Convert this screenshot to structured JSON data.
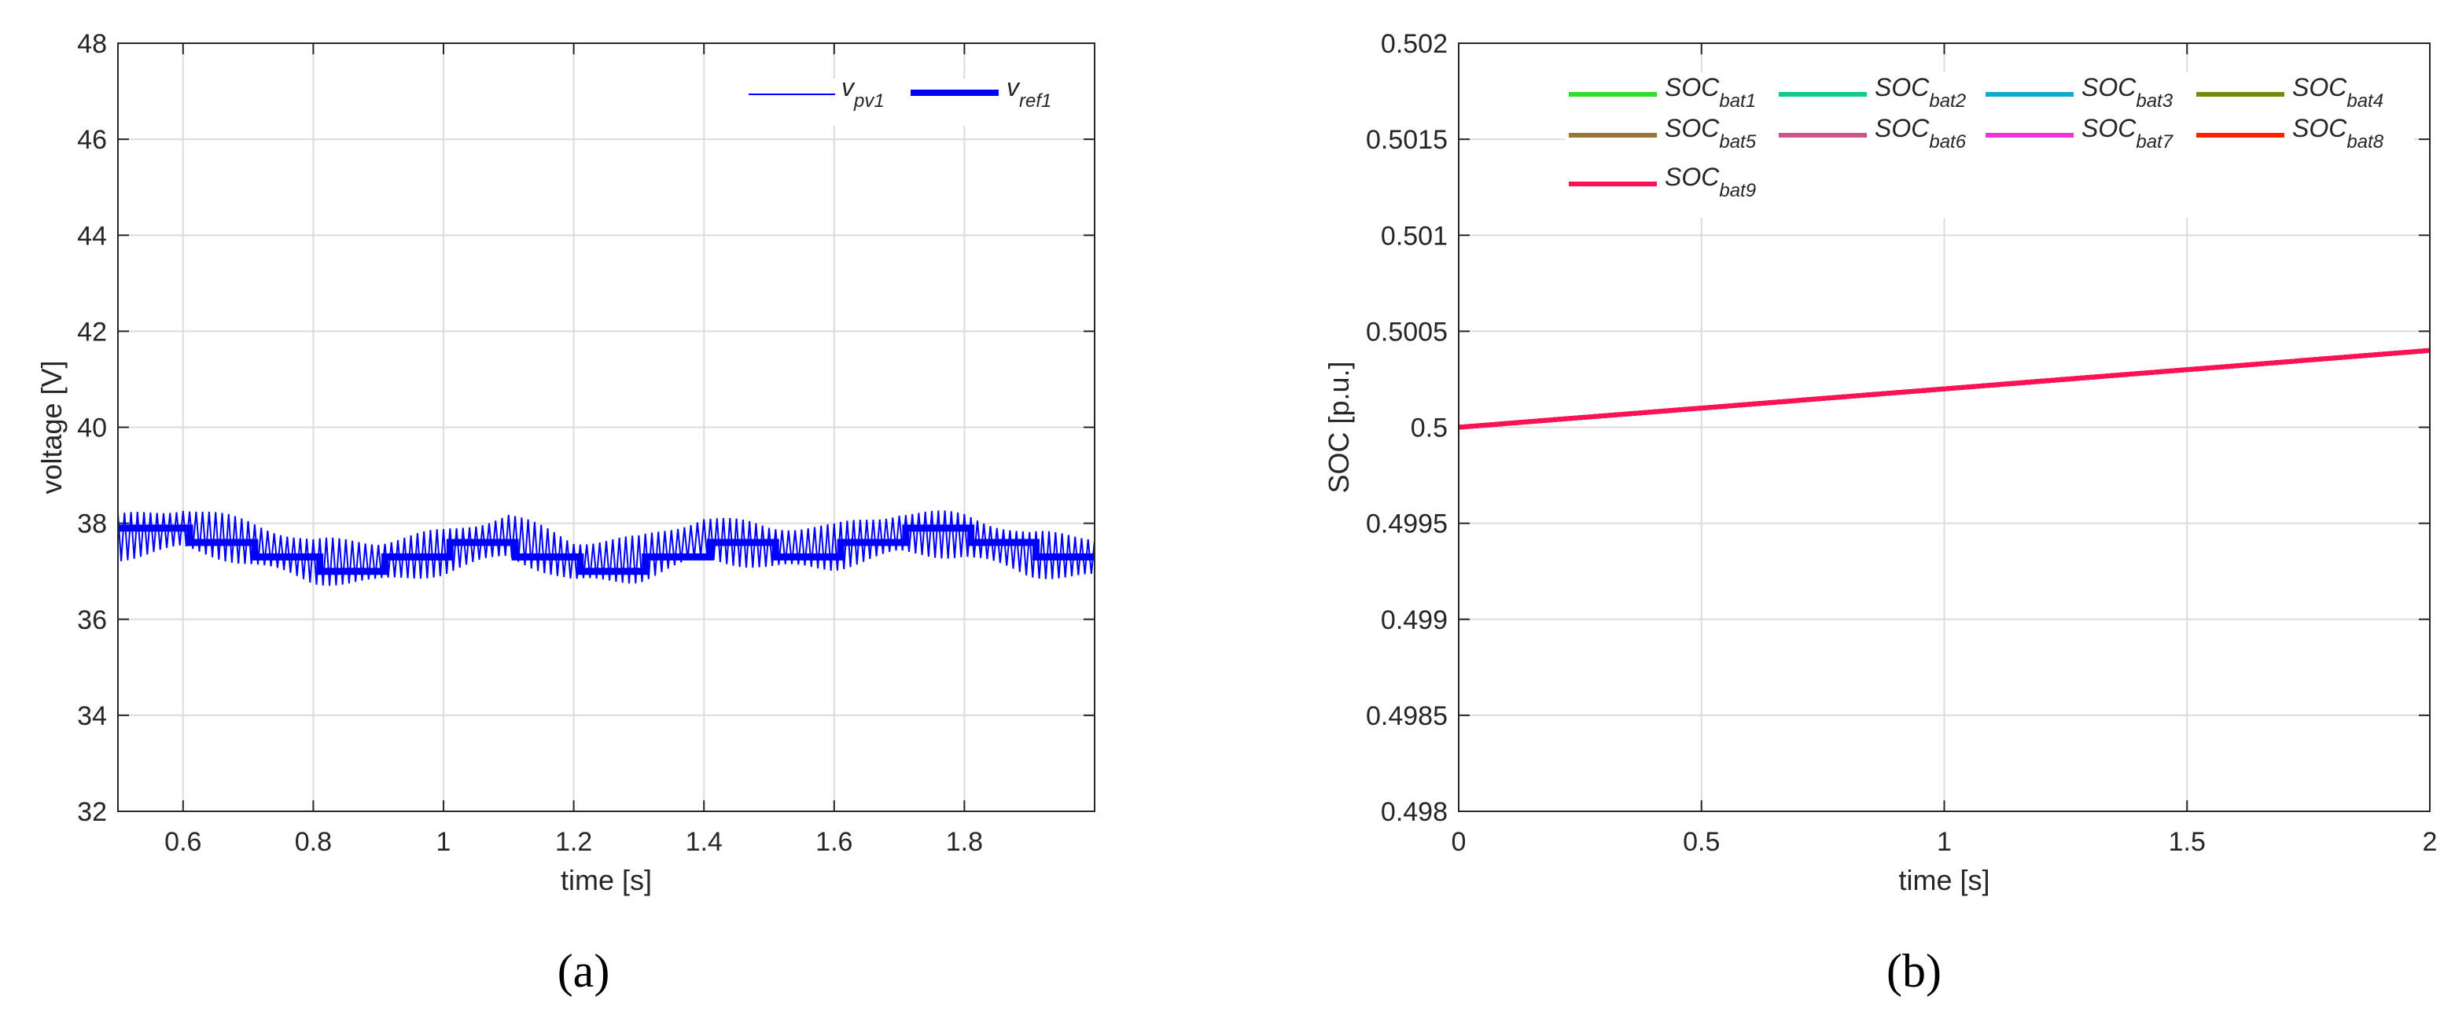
{
  "chart_data": [
    {
      "type": "line",
      "xlabel": "time [s]",
      "ylabel": "voltage [V]",
      "xlim": [
        0.5,
        2.0
      ],
      "ylim": [
        32,
        48
      ],
      "xticks": [
        0.6,
        0.8,
        1,
        1.2,
        1.4,
        1.6,
        1.8
      ],
      "xtick_labels": [
        "0.6",
        "0.8",
        "1",
        "1.2",
        "1.4",
        "1.6",
        "1.8"
      ],
      "yticks": [
        32,
        34,
        36,
        38,
        40,
        42,
        44,
        46,
        48
      ],
      "ytick_labels": [
        "32",
        "34",
        "36",
        "38",
        "40",
        "42",
        "44",
        "46",
        "48"
      ],
      "grid": true,
      "legend_position": "top-right",
      "caption": "(a)",
      "series": [
        {
          "name": "v",
          "subscript": "pv1",
          "color": "#0000ff",
          "style": "thin-oscillating",
          "ripple_amplitude": 0.5,
          "ripple_frequency_hz": 100,
          "center": {
            "x": [
              0.5,
              0.6,
              0.7,
              0.8,
              0.9,
              1.0,
              1.1,
              1.2,
              1.3,
              1.4,
              1.5,
              1.6,
              1.7,
              1.8,
              1.9,
              2.0
            ],
            "y": [
              37.7,
              37.9,
              37.6,
              37.2,
              37.2,
              37.4,
              37.75,
              37.2,
              37.25,
              37.7,
              37.5,
              37.5,
              37.8,
              37.75,
              37.35,
              37.3
            ]
          }
        },
        {
          "name": "v",
          "subscript": "ref1",
          "color": "#0000ff",
          "style": "thick-step",
          "steps": {
            "x": [
              0.5,
              0.61,
              0.71,
              0.81,
              0.91,
              1.01,
              1.11,
              1.21,
              1.31,
              1.41,
              1.51,
              1.61,
              1.71,
              1.81,
              1.91,
              2.0
            ],
            "y": [
              37.9,
              37.6,
              37.3,
              37.0,
              37.3,
              37.6,
              37.3,
              37.0,
              37.3,
              37.6,
              37.3,
              37.6,
              37.9,
              37.6,
              37.3,
              37.3
            ]
          }
        }
      ]
    },
    {
      "type": "line",
      "xlabel": "time [s]",
      "ylabel": "SOC [p.u.]",
      "xlim": [
        0,
        2
      ],
      "ylim": [
        0.498,
        0.502
      ],
      "xticks": [
        0,
        0.5,
        1,
        1.5,
        2
      ],
      "xtick_labels": [
        "0",
        "0.5",
        "1",
        "1.5",
        "2"
      ],
      "yticks": [
        0.498,
        0.4985,
        0.499,
        0.4995,
        0.5,
        0.5005,
        0.501,
        0.5015,
        0.502
      ],
      "ytick_labels": [
        "0.498",
        "0.4985",
        "0.499",
        "0.4995",
        "0.5",
        "0.5005",
        "0.501",
        "0.5015",
        "0.502"
      ],
      "grid": true,
      "legend_position": "top",
      "caption": "(b)",
      "series": [
        {
          "name": "SOC",
          "subscript": "bat1",
          "color": "#33dd33",
          "x": [
            0,
            2
          ],
          "y": [
            0.5,
            0.5004
          ]
        },
        {
          "name": "SOC",
          "subscript": "bat2",
          "color": "#11cc88",
          "x": [
            0,
            2
          ],
          "y": [
            0.5,
            0.5004
          ]
        },
        {
          "name": "SOC",
          "subscript": "bat3",
          "color": "#11aacc",
          "x": [
            0,
            2
          ],
          "y": [
            0.5,
            0.5004
          ]
        },
        {
          "name": "SOC",
          "subscript": "bat4",
          "color": "#778811",
          "x": [
            0,
            2
          ],
          "y": [
            0.5,
            0.5004
          ]
        },
        {
          "name": "SOC",
          "subscript": "bat5",
          "color": "#997733",
          "x": [
            0,
            2
          ],
          "y": [
            0.5,
            0.5004
          ]
        },
        {
          "name": "SOC",
          "subscript": "bat6",
          "color": "#cc5588",
          "x": [
            0,
            2
          ],
          "y": [
            0.5,
            0.5004
          ]
        },
        {
          "name": "SOC",
          "subscript": "bat7",
          "color": "#ee33dd",
          "x": [
            0,
            2
          ],
          "y": [
            0.5,
            0.5004
          ]
        },
        {
          "name": "SOC",
          "subscript": "bat8",
          "color": "#ff2200",
          "x": [
            0,
            2
          ],
          "y": [
            0.5,
            0.5004
          ]
        },
        {
          "name": "SOC",
          "subscript": "bat9",
          "color": "#ff1155",
          "x": [
            0,
            2
          ],
          "y": [
            0.5,
            0.5004
          ]
        }
      ]
    }
  ]
}
